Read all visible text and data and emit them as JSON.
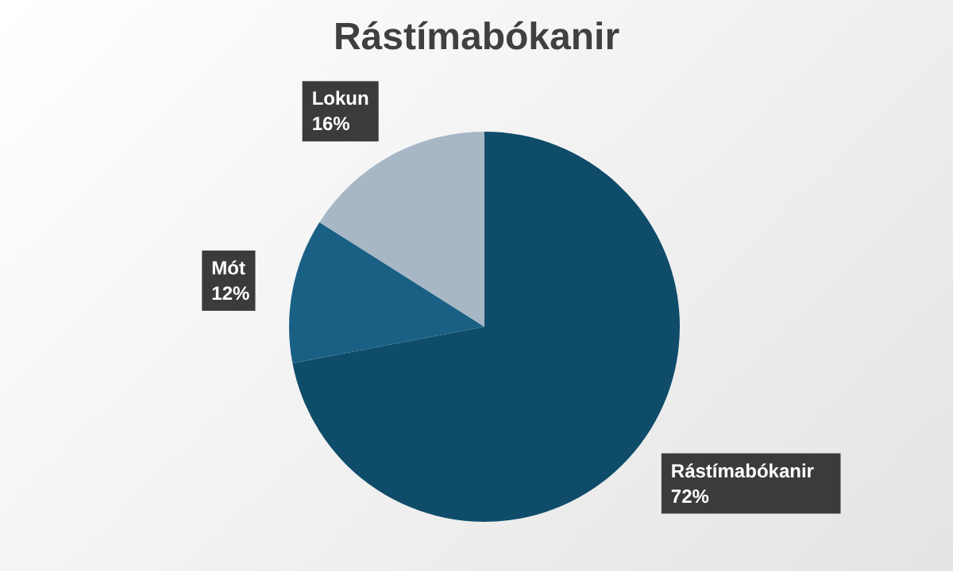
{
  "chart_data": {
    "type": "pie",
    "title": "Rástímabókanir",
    "categories": [
      "Rástímabókanir",
      "Mót",
      "Lokun"
    ],
    "values": [
      72,
      12,
      16
    ],
    "colors": [
      "#0f4c69",
      "#1a6085",
      "#a7b7c5"
    ],
    "value_labels": [
      "72%",
      "12%",
      "16%"
    ],
    "legend": false
  }
}
